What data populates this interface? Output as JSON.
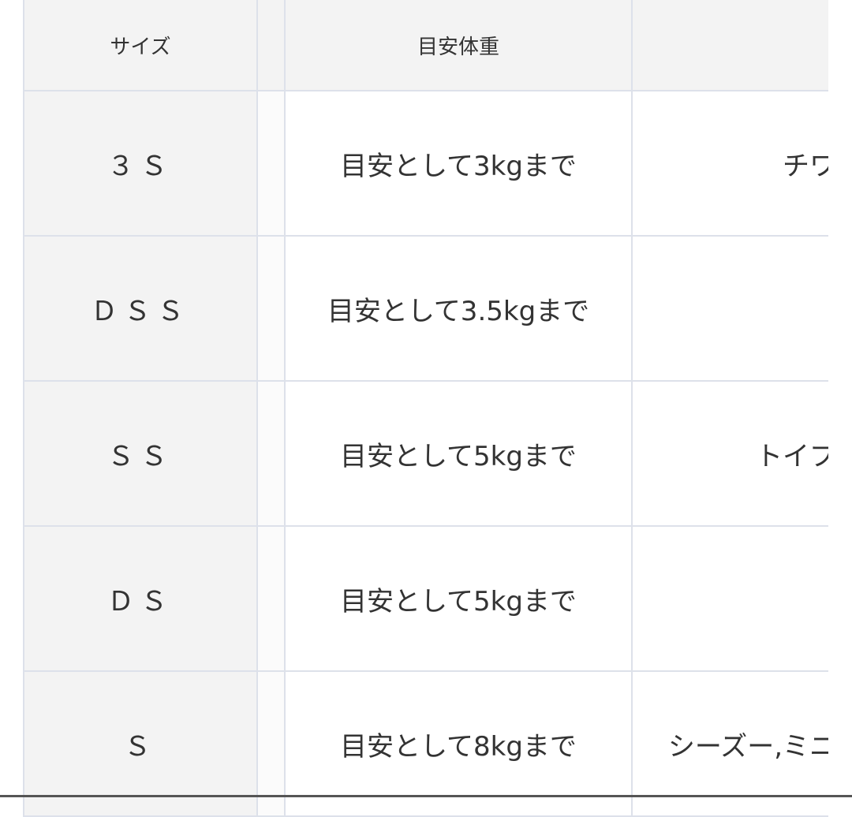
{
  "table": {
    "headers": [
      "サイズ",
      "目安体重",
      ""
    ],
    "rows": [
      {
        "size": "３Ｓ",
        "weight": "目安として3kgまで",
        "breed": "チワ"
      },
      {
        "size": "ＤＳＳ",
        "weight": "目安として3.5kgまで",
        "breed": ""
      },
      {
        "size": "ＳＳ",
        "weight": "目安として5kgまで",
        "breed": "トイプ"
      },
      {
        "size": "ＤＳ",
        "weight": "目安として5kgまで",
        "breed": ""
      },
      {
        "size": "Ｓ",
        "weight": "目安として8kgまで",
        "breed": "シーズー,ミニ"
      }
    ]
  }
}
